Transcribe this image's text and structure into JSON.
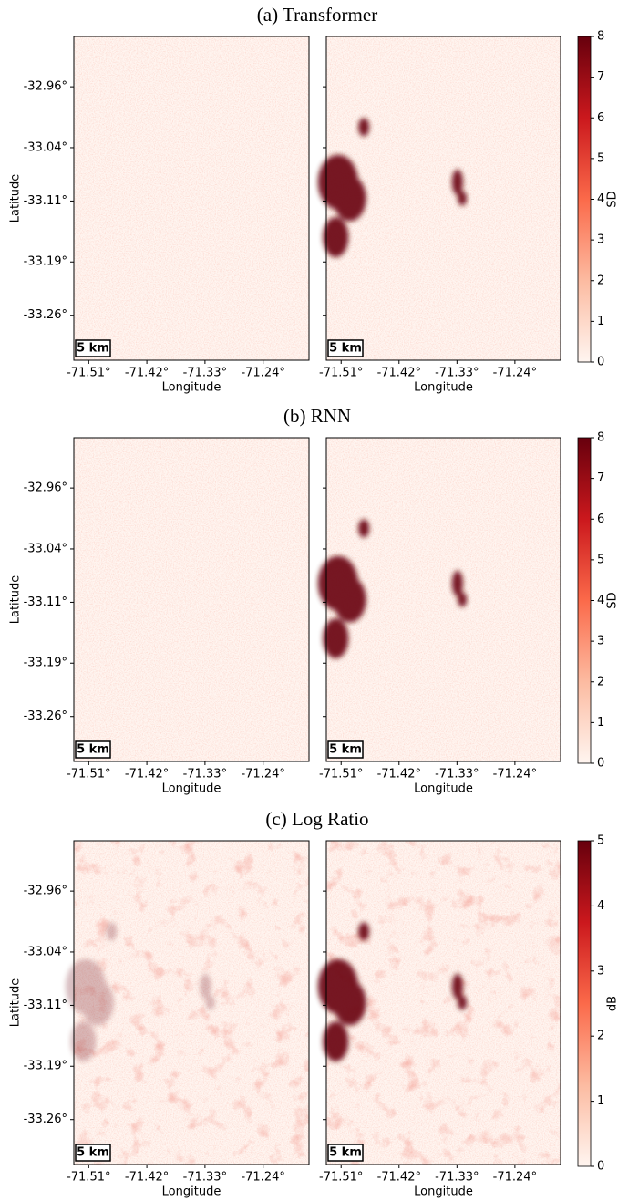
{
  "chart_data": [
    {
      "type": "heatmap",
      "title": "(a) Transformer",
      "ylabel": "Latitude",
      "xlabel": "Longitude",
      "scalebar": "5 km",
      "colors": [
        "#fff5f0",
        "#67000d"
      ],
      "xlim": [
        -71.533,
        -71.169
      ],
      "ylim": [
        -33.319,
        -32.894
      ],
      "xticks": [
        {
          "value": -71.51,
          "label": "-71.51°"
        },
        {
          "value": -71.42,
          "label": "-71.42°"
        },
        {
          "value": -71.33,
          "label": "-71.33°"
        },
        {
          "value": -71.24,
          "label": "-71.24°"
        }
      ],
      "yticks": [
        {
          "value": -32.96,
          "label": "-32.96°"
        },
        {
          "value": -33.04,
          "label": "-33.04°"
        },
        {
          "value": -33.11,
          "label": "-33.11°"
        },
        {
          "value": -33.19,
          "label": "-33.19°"
        },
        {
          "value": -33.26,
          "label": "-33.26°"
        }
      ],
      "colorbar": {
        "label": "SD",
        "lim": [
          0,
          8
        ],
        "ticks": [
          0,
          1,
          2,
          3,
          4,
          5,
          6,
          7,
          8
        ]
      }
    },
    {
      "type": "heatmap",
      "title": "(b) RNN",
      "ylabel": "Latitude",
      "xlabel": "Longitude",
      "scalebar": "5 km",
      "colors": [
        "#fff5f0",
        "#67000d"
      ],
      "xlim": [
        -71.533,
        -71.169
      ],
      "ylim": [
        -33.319,
        -32.894
      ],
      "xticks": [
        {
          "value": -71.51,
          "label": "-71.51°"
        },
        {
          "value": -71.42,
          "label": "-71.42°"
        },
        {
          "value": -71.33,
          "label": "-71.33°"
        },
        {
          "value": -71.24,
          "label": "-71.24°"
        }
      ],
      "yticks": [
        {
          "value": -32.96,
          "label": "-32.96°"
        },
        {
          "value": -33.04,
          "label": "-33.04°"
        },
        {
          "value": -33.11,
          "label": "-33.11°"
        },
        {
          "value": -33.19,
          "label": "-33.19°"
        },
        {
          "value": -33.26,
          "label": "-33.26°"
        }
      ],
      "colorbar": {
        "label": "SD",
        "lim": [
          0,
          8
        ],
        "ticks": [
          0,
          1,
          2,
          3,
          4,
          5,
          6,
          7,
          8
        ]
      }
    },
    {
      "type": "heatmap",
      "title": "(c) Log Ratio",
      "ylabel": "Latitude",
      "xlabel": "Longitude",
      "scalebar": "5 km",
      "colors": [
        "#fff5f0",
        "#67000d"
      ],
      "xlim": [
        -71.533,
        -71.169
      ],
      "ylim": [
        -33.319,
        -32.894
      ],
      "xticks": [
        {
          "value": -71.51,
          "label": "-71.51°"
        },
        {
          "value": -71.42,
          "label": "-71.42°"
        },
        {
          "value": -71.33,
          "label": "-71.33°"
        },
        {
          "value": -71.24,
          "label": "-71.24°"
        }
      ],
      "yticks": [
        {
          "value": -32.96,
          "label": "-32.96°"
        },
        {
          "value": -33.04,
          "label": "-33.04°"
        },
        {
          "value": -33.11,
          "label": "-33.11°"
        },
        {
          "value": -33.19,
          "label": "-33.19°"
        },
        {
          "value": -33.26,
          "label": "-33.26°"
        }
      ],
      "colorbar": {
        "label": "dB",
        "lim": [
          0,
          5
        ],
        "ticks": [
          0,
          1,
          2,
          3,
          4,
          5
        ]
      }
    }
  ]
}
